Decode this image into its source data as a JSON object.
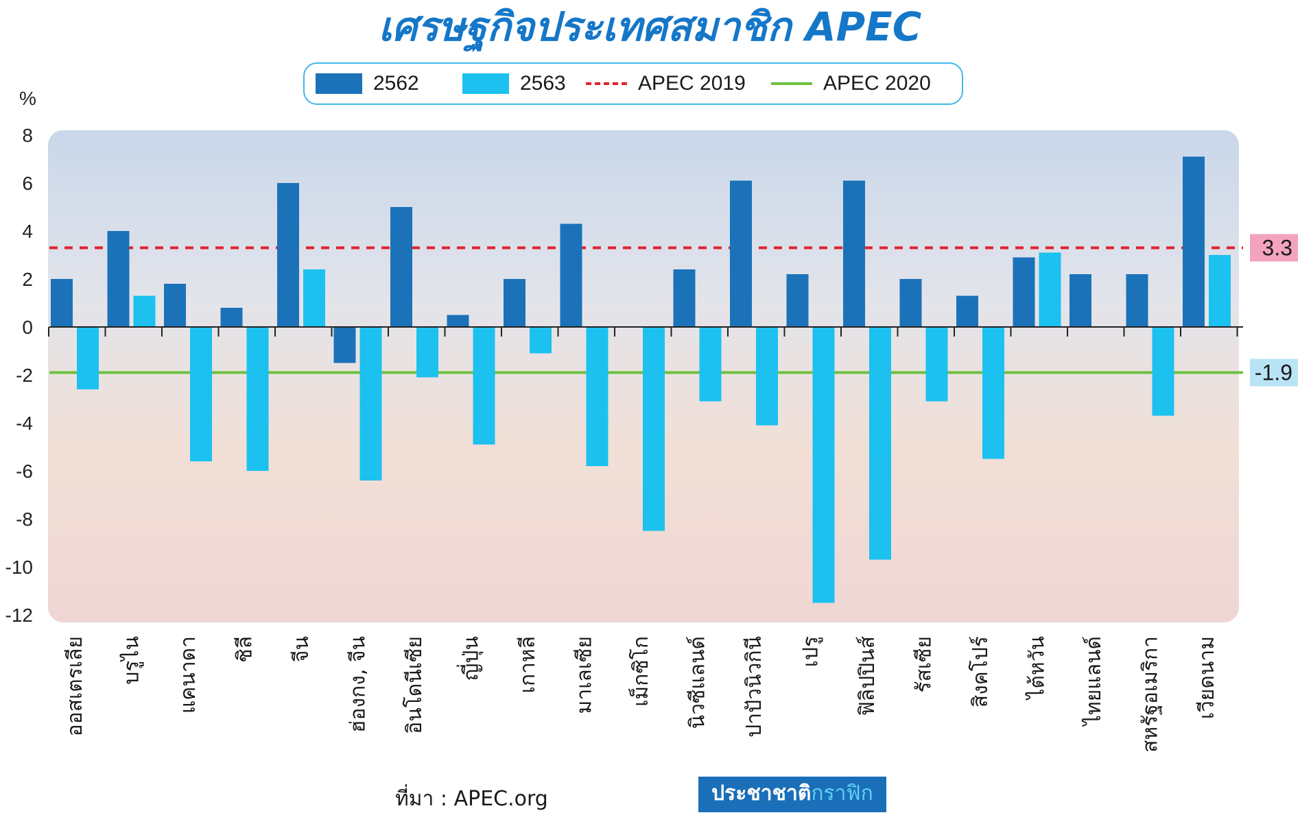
{
  "header": {
    "title": "เศรษฐกิจประเทศสมาชิก APEC"
  },
  "legend": {
    "s2562": "2562",
    "s2563": "2563",
    "apec2019": "APEC 2019",
    "apec2020": "APEC 2020"
  },
  "unit_label": "%",
  "footer": {
    "source": "ที่มา : APEC.org",
    "brand_main": "ประชาชาติ",
    "brand_accent": "กราฟิก"
  },
  "colors": {
    "s2562": "#1b72b9",
    "s2563": "#1cc1f0",
    "apec2019": "#e3212b",
    "apec2020": "#6cc13e",
    "title": "#1577c8"
  },
  "chart_data": {
    "type": "bar",
    "ylim": [
      -12,
      8
    ],
    "yticks": [
      8,
      6,
      4,
      2,
      0,
      -2,
      -4,
      -6,
      -8,
      -10,
      -12
    ],
    "categories": [
      "ออสเตรเลีย",
      "บรูไน",
      "แคนาดา",
      "ชิลี",
      "จีน",
      "ฮ่องกง, จีน",
      "อินโดนีเซีย",
      "ญี่ปุ่น",
      "เกาหลี",
      "มาเลเซีย",
      "เม็กซิโก",
      "นิวซีแลนด์",
      "ปาปัวนิวกินี",
      "เปรู",
      "ฟิลิปปินส์",
      "รัสเซีย",
      "สิงคโปร์",
      "ไต้หวัน",
      "ไทยแลนด์",
      "สหรัฐอเมริกา",
      "เวียดนาม"
    ],
    "series": [
      {
        "name": "2562",
        "values": [
          2.0,
          4.0,
          1.8,
          0.8,
          6.0,
          -1.5,
          5.0,
          0.5,
          2.0,
          4.3,
          null,
          2.4,
          6.1,
          2.2,
          6.1,
          2.0,
          1.3,
          2.9,
          2.2,
          2.2,
          7.1
        ]
      },
      {
        "name": "2563",
        "values": [
          -2.6,
          1.3,
          -5.6,
          -6.0,
          2.4,
          -6.4,
          -2.1,
          -4.9,
          -1.1,
          -5.8,
          -8.5,
          -3.1,
          -4.1,
          -11.5,
          -9.7,
          -3.1,
          -5.5,
          3.1,
          null,
          -3.7,
          3.0
        ]
      }
    ],
    "reference_lines": [
      {
        "name": "APEC 2019",
        "value": 3.3,
        "label": "3.3"
      },
      {
        "name": "APEC 2020",
        "value": -1.9,
        "label": "-1.9"
      }
    ]
  }
}
